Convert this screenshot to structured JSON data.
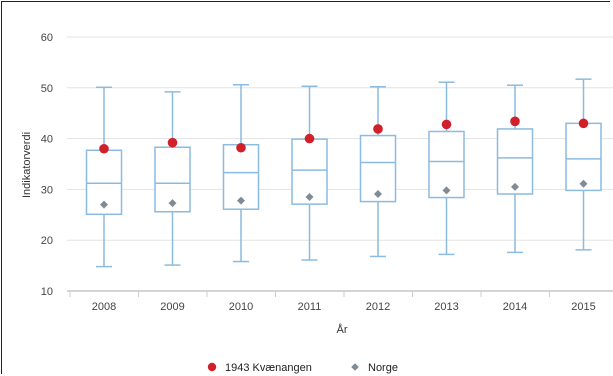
{
  "chart_data": {
    "type": "boxplot",
    "title": "",
    "xlabel": "År",
    "ylabel": "Indikatorverdi",
    "ylim": [
      10,
      60
    ],
    "yticks": [
      10,
      20,
      30,
      40,
      50,
      60
    ],
    "grid": "horizontal",
    "legend_position": "bottom-center",
    "categories": [
      "2008",
      "2009",
      "2010",
      "2011",
      "2012",
      "2013",
      "2014",
      "2015"
    ],
    "boxes": [
      {
        "min": 14.8,
        "q1": 25.1,
        "median": 31.2,
        "q3": 37.7,
        "max": 50.1
      },
      {
        "min": 15.1,
        "q1": 25.6,
        "median": 31.2,
        "q3": 38.3,
        "max": 49.2
      },
      {
        "min": 15.8,
        "q1": 26.1,
        "median": 33.3,
        "q3": 38.8,
        "max": 50.6
      },
      {
        "min": 16.1,
        "q1": 27.1,
        "median": 33.8,
        "q3": 39.9,
        "max": 50.3
      },
      {
        "min": 16.8,
        "q1": 27.6,
        "median": 35.3,
        "q3": 40.6,
        "max": 50.2
      },
      {
        "min": 17.2,
        "q1": 28.4,
        "median": 35.5,
        "q3": 41.4,
        "max": 51.1
      },
      {
        "min": 17.6,
        "q1": 29.1,
        "median": 36.2,
        "q3": 41.9,
        "max": 50.5
      },
      {
        "min": 18.1,
        "q1": 29.8,
        "median": 36.0,
        "q3": 43.0,
        "max": 51.7
      }
    ],
    "series": [
      {
        "name": "1943 Kvænangen",
        "marker": "circle",
        "color": "#d1202a",
        "values": [
          38.0,
          39.2,
          38.2,
          40.0,
          41.9,
          42.8,
          43.4,
          43.0
        ]
      },
      {
        "name": "Norge",
        "marker": "diamond",
        "color": "#7f8c95",
        "values": [
          27.0,
          27.3,
          27.8,
          28.5,
          29.1,
          29.8,
          30.5,
          31.1
        ]
      }
    ],
    "box_color": "#8bbbe0"
  }
}
